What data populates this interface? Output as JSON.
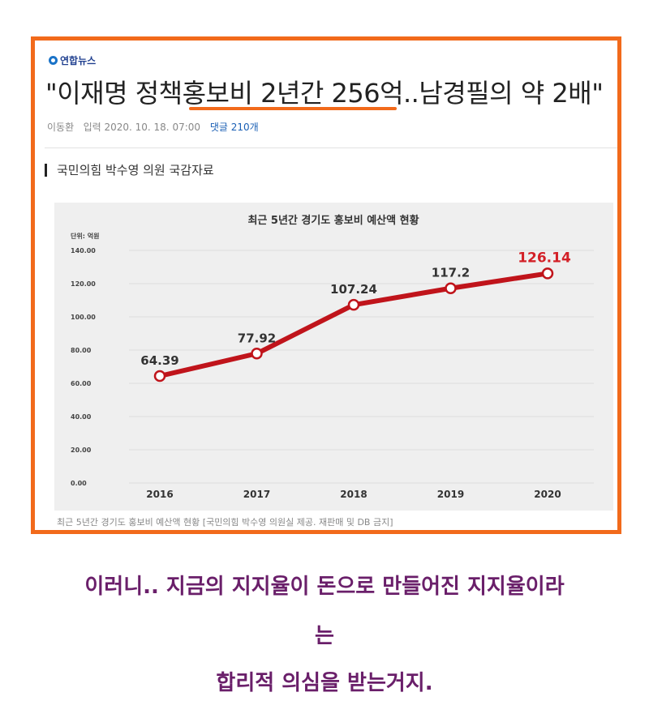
{
  "article": {
    "source": "연합뉴스",
    "headline": "\"이재명 정책홍보비 2년간 256억..남경필의 약 2배\"",
    "author": "이동환",
    "date": "입력 2020. 10. 18. 07:00",
    "comments": "댓글 210개",
    "section_title": "국민의힘 박수영 의원 국감자료",
    "caption": "최근 5년간 경기도 홍보비 예산액 현황 [국민의힘 박수영 의원실 제공. 재판매 및 DB 금지]"
  },
  "chart_data": {
    "type": "line",
    "title": "최근 5년간 경기도 홍보비 예산액 현황",
    "unit": "단위: 억원",
    "categories": [
      "2016",
      "2017",
      "2018",
      "2019",
      "2020"
    ],
    "series": [
      {
        "values": [
          64.39,
          77.92,
          107.24,
          117.2,
          126.14
        ]
      }
    ],
    "value_labels": [
      "64.39",
      "77.92",
      "107.24",
      "117.2",
      "126.14"
    ],
    "y_ticks": [
      "0.00",
      "20.00",
      "40.00",
      "60.00",
      "80.00",
      "100.00",
      "120.00",
      "140.00"
    ],
    "ylim": [
      0,
      140
    ],
    "grid": true,
    "line_color": "#c0141b",
    "highlight_color": "#d32027"
  },
  "comment": {
    "line1": "이러니.. 지금의 지지율이 돈으로 만들어진 지지율이라",
    "line2": "는",
    "line3": "합리적 의심을 받는거지."
  }
}
